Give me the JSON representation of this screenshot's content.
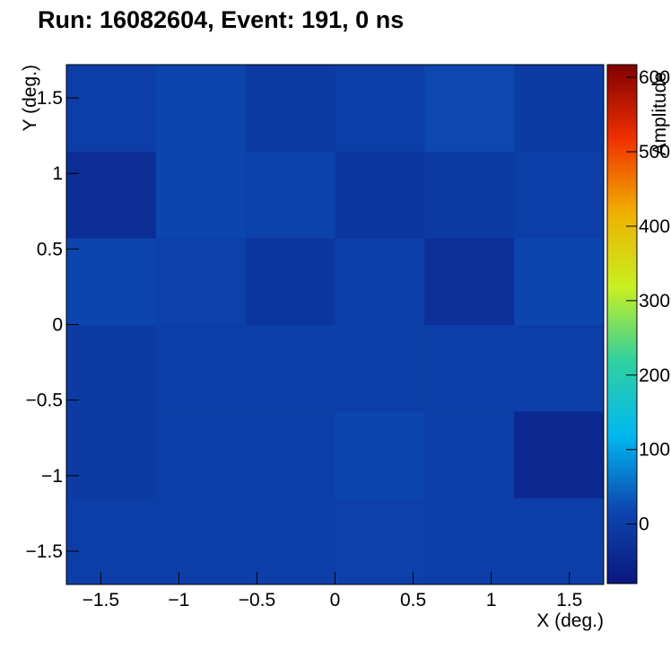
{
  "chart_data": {
    "type": "heatmap",
    "title": "Run: 16082604, Event: 191, 0 ns",
    "x_label": "X (deg.)",
    "y_label": "Y (deg.)",
    "z_label": "Amplitude",
    "x_bins": [
      -1.72,
      -1.147,
      -0.573,
      0,
      0.573,
      1.147,
      1.72
    ],
    "y_bins": [
      -1.72,
      -1.147,
      -0.573,
      0,
      0.573,
      1.147,
      1.72
    ],
    "z": [
      [
        0,
        0,
        0,
        5,
        0,
        0
      ],
      [
        -5,
        0,
        0,
        15,
        0,
        -45
      ],
      [
        -5,
        0,
        0,
        0,
        0,
        0
      ],
      [
        15,
        5,
        -15,
        0,
        -30,
        15
      ],
      [
        -35,
        15,
        10,
        -15,
        -5,
        0
      ],
      [
        0,
        15,
        -10,
        0,
        20,
        -5
      ]
    ],
    "xlim": [
      -1.72,
      1.72
    ],
    "ylim": [
      -1.72,
      1.72
    ],
    "zlim": [
      -80,
      617
    ],
    "xticks": [
      {
        "value": -1.5,
        "label": "−1.5"
      },
      {
        "value": -1,
        "label": "−1"
      },
      {
        "value": -0.5,
        "label": "−0.5"
      },
      0,
      0.5,
      1,
      1.5
    ],
    "yticks": [
      {
        "value": -1.5,
        "label": "−1.5"
      },
      {
        "value": -1,
        "label": "−1"
      },
      {
        "value": -0.5,
        "label": "−0.5"
      },
      0,
      0.5,
      1,
      1.5
    ],
    "zticks": [
      0,
      100,
      200,
      300,
      400,
      500,
      600
    ],
    "colorscale": [
      "#0b1780",
      "#0d47b0",
      "#00b8f0",
      "#30d0a0",
      "#c8f020",
      "#f0b000",
      "#f03000",
      "#800000"
    ]
  }
}
